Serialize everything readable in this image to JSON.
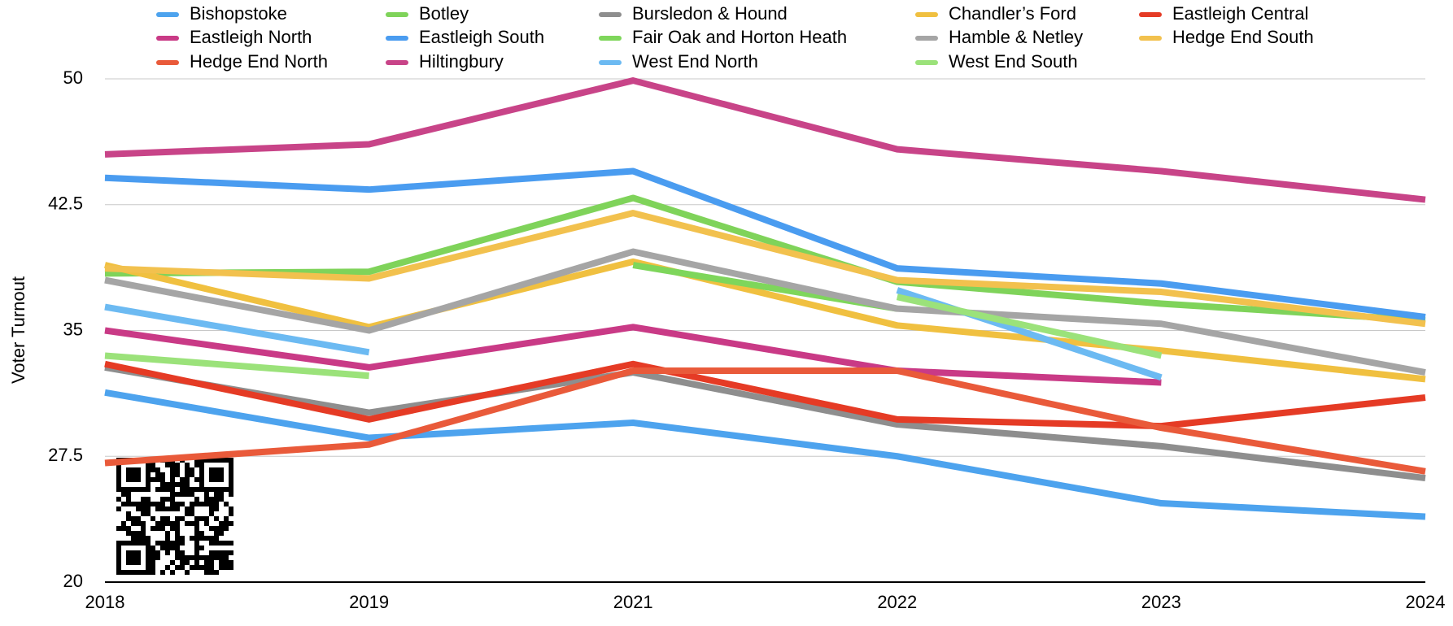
{
  "chart_data": {
    "type": "line",
    "y_label": "Voter Turnout",
    "categories": [
      "2018",
      "2019",
      "2021",
      "2022",
      "2023",
      "2024"
    ],
    "ylim": [
      20,
      50
    ],
    "yticks": [
      20,
      27.5,
      35,
      42.5,
      50
    ],
    "grid": true,
    "series": [
      {
        "name": "Bishopstoke",
        "color": "#4da3ee",
        "values": [
          31.3,
          28.6,
          29.5,
          27.5,
          24.7,
          23.9
        ]
      },
      {
        "name": "Botley",
        "color": "#7fd35a",
        "values": [
          38.4,
          38.5,
          42.9,
          37.9,
          36.6,
          35.6
        ]
      },
      {
        "name": "Bursledon & Hound",
        "color": "#8e8e8e",
        "values": [
          32.8,
          30.1,
          32.5,
          29.4,
          28.1,
          26.2
        ]
      },
      {
        "name": "Chandler’s Ford",
        "color": "#f0c040",
        "values": [
          38.9,
          35.2,
          39.1,
          35.3,
          33.8,
          32.1
        ]
      },
      {
        "name": "Eastleigh Central",
        "color": "#e53b25",
        "values": [
          33.0,
          29.7,
          33.0,
          29.7,
          29.3,
          31.0
        ]
      },
      {
        "name": "Eastleigh North",
        "color": "#c93a86",
        "values": [
          35.0,
          32.8,
          35.2,
          32.6,
          31.9,
          null
        ]
      },
      {
        "name": "Eastleigh South",
        "color": "#4a9cf0",
        "values": [
          44.1,
          43.4,
          44.5,
          38.7,
          37.8,
          35.8
        ]
      },
      {
        "name": "Fair Oak and Horton Heath",
        "color": "#7ed65b",
        "values": [
          null,
          null,
          38.9,
          36.3,
          null,
          null
        ]
      },
      {
        "name": "Hamble & Netley",
        "color": "#a5a5a5",
        "values": [
          38.0,
          35.0,
          39.7,
          36.3,
          35.4,
          32.5
        ]
      },
      {
        "name": "Hedge End South",
        "color": "#f2c14e",
        "values": [
          38.7,
          38.1,
          42.0,
          38.0,
          37.3,
          35.4
        ]
      },
      {
        "name": "Hedge End North",
        "color": "#e95a3a",
        "values": [
          27.1,
          28.2,
          32.6,
          32.6,
          29.2,
          26.6
        ]
      },
      {
        "name": "Hiltingbury",
        "color": "#c84488",
        "values": [
          45.5,
          46.1,
          49.9,
          45.8,
          44.5,
          42.8
        ]
      },
      {
        "name": "West End North",
        "color": "#6cbaf2",
        "values": [
          36.4,
          33.7,
          null,
          37.4,
          32.2,
          null
        ]
      },
      {
        "name": "West End South",
        "color": "#9be27a",
        "values": [
          33.5,
          32.3,
          null,
          37.0,
          33.5,
          null
        ]
      }
    ]
  }
}
